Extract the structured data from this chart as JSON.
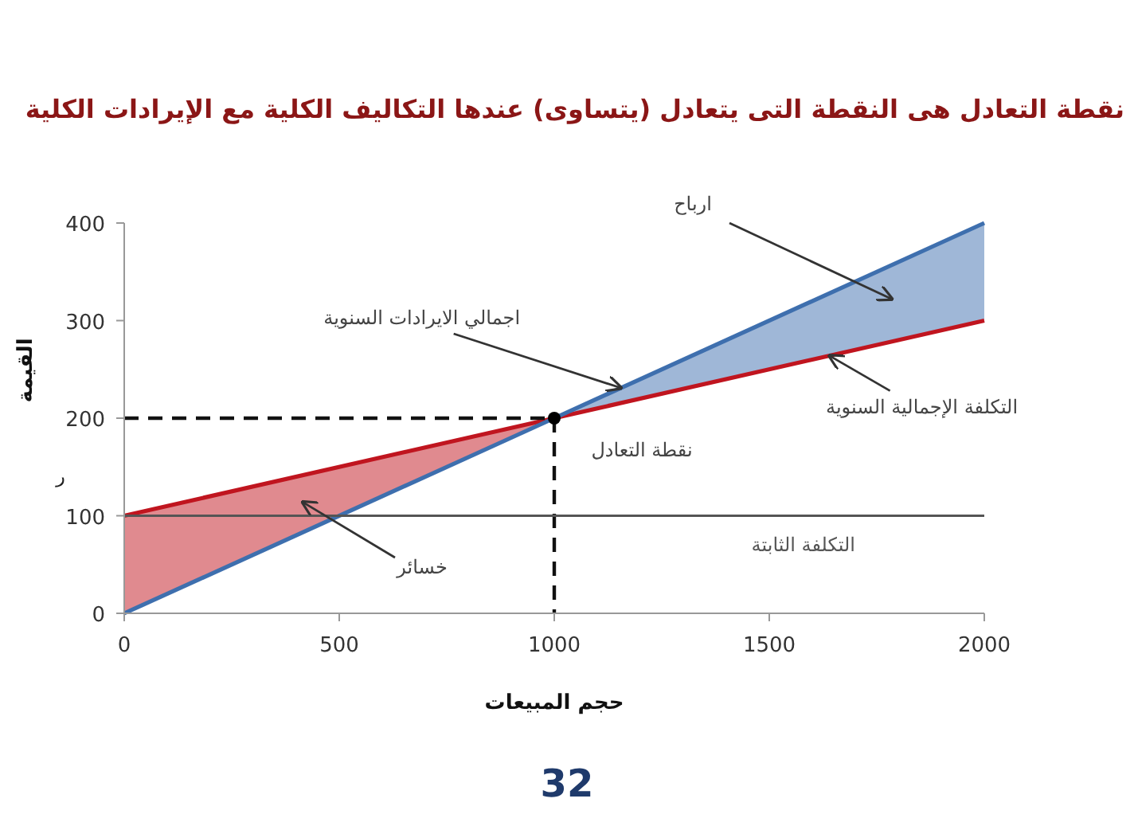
{
  "chart_data": {
    "type": "line",
    "title": "نقطة التعادل هى النقطة التى يتعادل (يتساوى) عندها التكاليف الكلية مع الإيرادات الكلية",
    "xlabel": "حجم المبيعات",
    "ylabel": "القيمة",
    "xlim": [
      0,
      2000
    ],
    "ylim": [
      0,
      400
    ],
    "xticks": [
      0,
      500,
      1000,
      1500,
      2000
    ],
    "yticks": [
      0,
      100,
      200,
      300,
      400
    ],
    "grid": false,
    "series": [
      {
        "color": "#c0151f",
        "x": [
          0,
          1000
        ],
        "values": [
          100,
          200
        ],
        "lower": [
          0,
          200
        ],
        "upper": [
          100,
          200
        ]
      },
      {
        "color": "#c0151f",
        "x": [
          1000,
          2000
        ],
        "values": [
          200,
          300
        ]
      },
      {
        "color": "#3e6fae",
        "x": [
          0,
          1000
        ],
        "values": [
          0,
          200
        ]
      },
      {
        "color": "#3e6fae",
        "x": [
          1000,
          2000
        ],
        "values": [
          200,
          400
        ],
        "lower": [
          200,
          300
        ],
        "upper": [
          200,
          400
        ]
      },
      {
        "color": "#111111",
        "line_style": "dashed",
        "x": [
          0,
          1000
        ],
        "values": [
          200,
          200
        ]
      },
      {
        "color": "#111111",
        "line_style": "dashed",
        "x": [
          1000,
          1000
        ],
        "values": [
          200,
          0
        ]
      },
      {
        "type": "scatter",
        "color": "#000000",
        "marker": "circle",
        "x": [
          1000
        ],
        "values": [
          200
        ]
      }
    ],
    "ref_lines": [
      {
        "axis": "y",
        "value": 100,
        "label": "التكلفة الثابتة",
        "color": "#555555"
      }
    ],
    "annotations": [
      "ارباح",
      {
        "text": "اجمالي الايرادات السنوية",
        "x": 1155,
        "y": 231
      },
      {
        "text": "التكلفة الإجمالية السنوية",
        "x": 1640,
        "y": 264
      },
      "خسائر",
      {
        "text": "نقطة التعادل",
        "x": 1000,
        "y": 200
      },
      "ر",
      "32"
    ]
  }
}
